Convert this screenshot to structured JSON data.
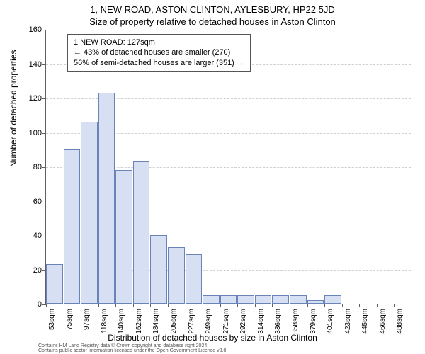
{
  "title_line1": "1, NEW ROAD, ASTON CLINTON, AYLESBURY, HP22 5JD",
  "title_line2": "Size of property relative to detached houses in Aston Clinton",
  "y_axis_label": "Number of detached properties",
  "x_axis_label": "Distribution of detached houses by size in Aston Clinton",
  "chart": {
    "type": "histogram",
    "y_min": 0,
    "y_max": 160,
    "y_tick_step": 20,
    "y_ticks": [
      0,
      20,
      40,
      60,
      80,
      100,
      120,
      140,
      160
    ],
    "x_labels": [
      "53sqm",
      "75sqm",
      "97sqm",
      "118sqm",
      "140sqm",
      "162sqm",
      "184sqm",
      "205sqm",
      "227sqm",
      "249sqm",
      "271sqm",
      "292sqm",
      "314sqm",
      "336sqm",
      "358sqm",
      "379sqm",
      "401sqm",
      "423sqm",
      "445sqm",
      "466sqm",
      "488sqm"
    ],
    "bars": [
      23,
      90,
      106,
      123,
      78,
      83,
      40,
      33,
      29,
      5,
      5,
      5,
      5,
      5,
      5,
      2,
      5,
      0,
      0,
      0,
      0
    ],
    "bar_fill": "#d7e0f2",
    "bar_border": "#6a84ba",
    "grid_color": "#cfcfcf",
    "axis_color": "#606060",
    "background_color": "#ffffff",
    "marker_value_sqm": 127,
    "marker_bin_index": 3,
    "marker_frac_in_bin": 0.41,
    "marker_color": "#c23030"
  },
  "annotation": {
    "line1": "1 NEW ROAD: 127sqm",
    "line2": "← 43% of detached houses are smaller (270)",
    "line3": "56% of semi-detached houses are larger (351) →"
  },
  "footnote_line1": "Contains HM Land Registry data © Crown copyright and database right 2024.",
  "footnote_line2": "Contains public sector information licensed under the Open Government Licence v3.0."
}
